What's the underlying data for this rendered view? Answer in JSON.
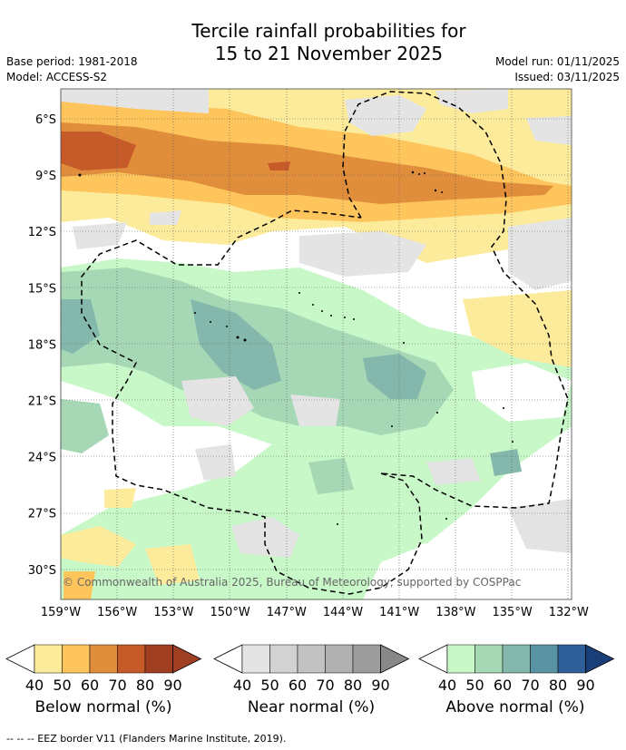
{
  "header": {
    "title_line1": "Tercile rainfall probabilities for",
    "title_line2": "15 to 21 November 2025",
    "base_period": "Base period: 1981-2018",
    "model": "Model: ACCESS-S2",
    "model_run": "Model run: 01/11/2025",
    "issued": "Issued: 03/11/2025"
  },
  "map": {
    "lat_labels": [
      "6°S",
      "9°S",
      "12°S",
      "15°S",
      "18°S",
      "21°S",
      "24°S",
      "27°S",
      "30°S"
    ],
    "lon_labels": [
      "159°W",
      "156°W",
      "153°W",
      "150°W",
      "147°W",
      "144°W",
      "141°W",
      "138°W",
      "135°W",
      "132°W"
    ],
    "copyright": "© Commonwealth of Australia 2025, Bureau of Meteorology, supported by COSPPac"
  },
  "legends": [
    {
      "label": "Below normal (%)",
      "ticks": [
        "40",
        "50",
        "60",
        "70",
        "80",
        "90"
      ],
      "colors": [
        "#fdeb9c",
        "#fdc55c",
        "#e08d3c",
        "#c65a28",
        "#a03e22",
        "#a03e22"
      ]
    },
    {
      "label": "Near normal (%)",
      "ticks": [
        "40",
        "50",
        "60",
        "70",
        "80",
        "90"
      ],
      "colors": [
        "#e4e4e4",
        "#d2d2d2",
        "#c2c2c2",
        "#b0b0b0",
        "#9c9c9c",
        "#888888"
      ]
    },
    {
      "label": "Above normal (%)",
      "ticks": [
        "40",
        "50",
        "60",
        "70",
        "80",
        "90"
      ],
      "colors": [
        "#c8f8c8",
        "#a6d8b6",
        "#84b8ac",
        "#5a94a2",
        "#2f5f98",
        "#1a3f78"
      ]
    }
  ],
  "footnote": "--  --  -- EEZ border V11 (Flanders Marine Institute, 2019)."
}
